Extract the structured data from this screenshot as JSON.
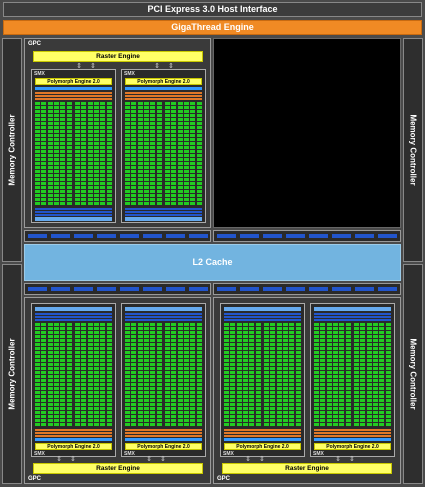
{
  "header": {
    "pcie": "PCI Express 3.0 Host Interface",
    "giga": "GigaThread Engine"
  },
  "memory_controller_label": "Memory Controller",
  "l2_label": "L2 Cache",
  "gpc_label": "GPC",
  "raster_label": "Raster Engine",
  "smx_label": "SMX",
  "poly_label": "Polymorph Engine 2.0",
  "arrows": "⇕⇕",
  "colors": {
    "core": "#22cc22",
    "ldst": "#2255cc",
    "sfu": "#e07828",
    "regfile": "#66aaee",
    "l1": "#3399ff"
  }
}
